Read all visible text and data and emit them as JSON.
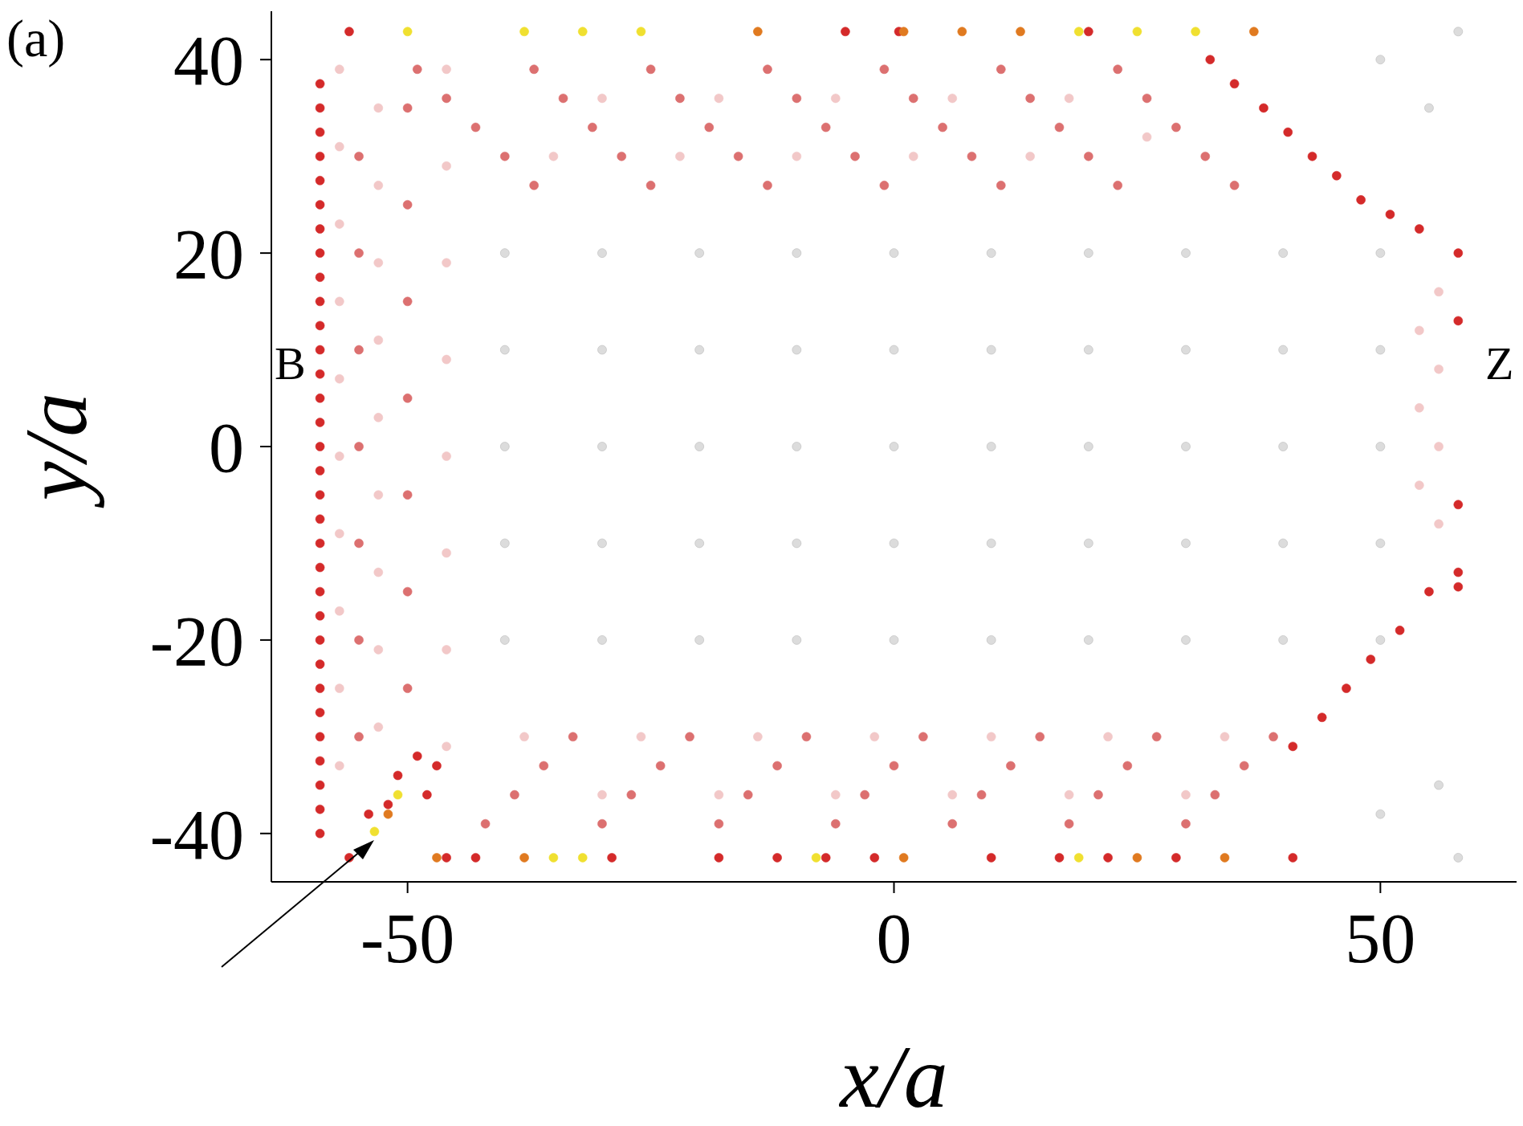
{
  "chart_data": {
    "type": "scatter",
    "xlabel": "x/a",
    "ylabel": "y/a",
    "xlim": [
      -64,
      64
    ],
    "ylim": [
      -45,
      45
    ],
    "xticks": [
      -50,
      0,
      50
    ],
    "yticks": [
      -40,
      -20,
      0,
      20,
      40
    ],
    "marker": "circle",
    "annotations": [
      "(a)",
      "B",
      "Z"
    ],
    "series": [
      {
        "color": "#dcdcdc",
        "x": [
          -40,
          -30,
          -20,
          -10,
          0,
          10,
          20,
          30,
          40,
          50,
          -40,
          -30,
          -20,
          -10,
          0,
          10,
          20,
          30,
          40,
          50,
          -40,
          -30,
          -20,
          -10,
          0,
          10,
          20,
          30,
          40,
          50,
          -40,
          -30,
          -20,
          -10,
          0,
          10,
          20,
          30,
          40,
          50,
          -40,
          -30,
          -20,
          -10,
          0,
          10,
          20,
          30,
          40,
          50,
          58,
          58,
          50,
          55,
          50,
          56
        ],
        "values": [
          20,
          20,
          20,
          20,
          20,
          20,
          20,
          20,
          20,
          20,
          10,
          10,
          10,
          10,
          10,
          10,
          10,
          10,
          10,
          10,
          0,
          0,
          0,
          0,
          0,
          0,
          0,
          0,
          0,
          0,
          -10,
          -10,
          -10,
          -10,
          -10,
          -10,
          -10,
          -10,
          -10,
          -10,
          -20,
          -20,
          -20,
          -20,
          -20,
          -20,
          -20,
          -20,
          -20,
          -20,
          42.9,
          -42.5,
          40,
          35,
          -38,
          -35
        ]
      },
      {
        "color": "#f2c8c8",
        "x": [
          -57,
          -57,
          -57,
          -57,
          -57,
          -57,
          -57,
          -57,
          -57,
          -57,
          -53,
          -53,
          -53,
          -53,
          -53,
          -53,
          -53,
          -53,
          -53,
          -46,
          -46,
          -46,
          -46,
          -46,
          -46,
          -46,
          -46,
          56,
          56,
          56,
          56,
          54,
          54,
          54,
          -35,
          -22,
          -10,
          2,
          14,
          26,
          -30,
          -18,
          -6,
          6,
          18,
          -38,
          -26,
          -14,
          -2,
          10,
          22,
          34,
          -30,
          -18,
          -6,
          6,
          18,
          30
        ],
        "values": [
          39,
          31,
          23,
          15,
          7,
          -1,
          -9,
          -17,
          -25,
          -33,
          35,
          27,
          19,
          11,
          3,
          -5,
          -13,
          -21,
          -29,
          39,
          29,
          19,
          9,
          -1,
          -11,
          -21,
          -31,
          16,
          8,
          0,
          -8,
          12,
          4,
          -4,
          30,
          30,
          30,
          30,
          30,
          32,
          36,
          36,
          36,
          36,
          36,
          -30,
          -30,
          -30,
          -30,
          -30,
          -30,
          -30,
          -36,
          -36,
          -36,
          -36,
          -36,
          -36
        ]
      },
      {
        "color": "#dc7070",
        "x": [
          -49,
          -46,
          -43,
          -40,
          -37,
          -37,
          -34,
          -31,
          -28,
          -25,
          -25,
          -22,
          -19,
          -16,
          -13,
          -13,
          -10,
          -7,
          -4,
          -1,
          -1,
          2,
          5,
          8,
          11,
          11,
          14,
          17,
          20,
          23,
          23,
          26,
          29,
          32,
          35,
          -42,
          -39,
          -36,
          -33,
          -30,
          -27,
          -24,
          -21,
          -18,
          -15,
          -12,
          -9,
          -6,
          -3,
          0,
          3,
          6,
          9,
          12,
          15,
          18,
          21,
          24,
          27,
          30,
          33,
          36,
          39,
          -50,
          -50,
          -50,
          -50,
          -50,
          -50,
          -50,
          -55,
          -55,
          -55,
          -55,
          -55,
          -55,
          -55
        ],
        "values": [
          39,
          36,
          33,
          30,
          27,
          39,
          36,
          33,
          30,
          27,
          39,
          36,
          33,
          30,
          27,
          39,
          36,
          33,
          30,
          27,
          39,
          36,
          33,
          30,
          27,
          39,
          36,
          33,
          30,
          27,
          39,
          36,
          33,
          30,
          27,
          -39,
          -36,
          -33,
          -30,
          -39,
          -36,
          -33,
          -30,
          -39,
          -36,
          -33,
          -30,
          -39,
          -36,
          -33,
          -30,
          -39,
          -36,
          -33,
          -30,
          -39,
          -36,
          -33,
          -30,
          -39,
          -36,
          -33,
          -30,
          35,
          25,
          15,
          5,
          -5,
          -15,
          -25,
          30,
          20,
          10,
          0,
          -10,
          -20,
          -30
        ]
      },
      {
        "color": "#d42a2a",
        "x": [
          -59,
          -59,
          -59,
          -59,
          -59,
          -59,
          -59,
          -59,
          -59,
          -59,
          -59,
          -59,
          -59,
          -59,
          -59,
          -59,
          -59,
          -59,
          -59,
          -59,
          -59,
          -59,
          -59,
          -59,
          -59,
          -59,
          -59,
          -59,
          -59,
          -59,
          -59,
          -59,
          58,
          58,
          58,
          58,
          58,
          32.5,
          35,
          38,
          40.5,
          43,
          45.5,
          48,
          51,
          54,
          41,
          44,
          46.5,
          49,
          52,
          55,
          -56,
          -46,
          -43,
          -29,
          -18,
          -12,
          -7,
          -2,
          10,
          17,
          22,
          29,
          41,
          -56,
          -5,
          0.5,
          20,
          -54,
          -52,
          -51,
          -49,
          -47,
          -48
        ],
        "values": [
          37.5,
          35,
          32.5,
          30,
          27.5,
          25,
          22.5,
          20,
          17.5,
          15,
          12.5,
          10,
          7.5,
          5,
          2.5,
          0,
          -2.5,
          -5,
          -7.5,
          -10,
          -12.5,
          -15,
          -17.5,
          -20,
          -22.5,
          -25,
          -27.5,
          -30,
          -32.5,
          -35,
          -37.5,
          -40,
          20,
          13,
          -6,
          -13,
          -14.5,
          40,
          37.5,
          35,
          32.5,
          30,
          28,
          25.5,
          24,
          22.5,
          -31,
          -28,
          -25,
          -22,
          -19,
          -15,
          -42.5,
          -42.5,
          -42.5,
          -42.5,
          -42.5,
          -42.5,
          -42.5,
          -42.5,
          -42.5,
          -42.5,
          -42.5,
          -42.5,
          -42.5,
          42.9,
          42.9,
          42.9,
          42.9,
          -38,
          -37,
          -34,
          -32,
          -33,
          -36
        ]
      },
      {
        "color": "#e07a20",
        "x": [
          -14,
          1,
          7,
          13,
          37,
          -47,
          -38,
          1,
          25,
          34,
          -52
        ],
        "values": [
          42.9,
          42.9,
          42.9,
          42.9,
          42.9,
          -42.5,
          -42.5,
          -42.5,
          -42.5,
          -42.5,
          -38
        ]
      },
      {
        "color": "#f0e030",
        "x": [
          -50,
          -38,
          -32,
          -26,
          19,
          25,
          31,
          -35,
          -32,
          -8,
          19,
          -53.4,
          -51
        ],
        "values": [
          42.9,
          42.9,
          42.9,
          42.9,
          42.9,
          42.9,
          42.9,
          -42.5,
          -42.5,
          -42.5,
          -42.5,
          -39.8,
          -36
        ]
      }
    ]
  }
}
